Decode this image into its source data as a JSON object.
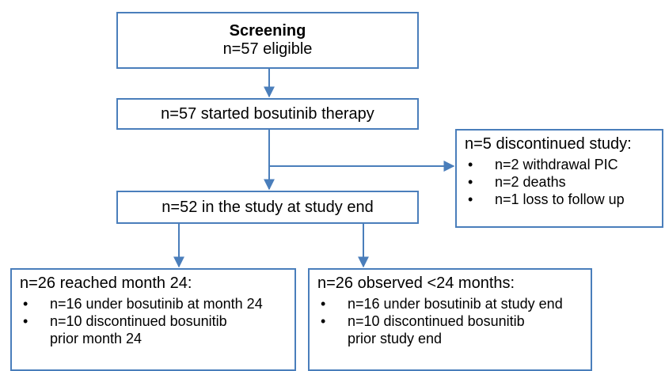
{
  "nodes": [
    {
      "title": "Screening",
      "label": "n=57 eligible"
    },
    {
      "label": "n=57 started bosutinib therapy"
    },
    {
      "label": "n=52 in the study at study end"
    },
    {
      "title": "n=5 discontinued study:",
      "items": [
        "n=2 withdrawal PIC",
        "n=2 deaths",
        "n=1 loss to follow up"
      ]
    },
    {
      "title": "n=26 reached month 24:",
      "items": [
        "n=16 under bosutinib at month 24",
        "n=10 discontinued bosunitib prior month 24"
      ]
    },
    {
      "title": "n=26 observed <24 months:",
      "items": [
        "n=16 under bosutinib at study end",
        "n=10 discontinued bosunitib prior study end"
      ]
    }
  ]
}
